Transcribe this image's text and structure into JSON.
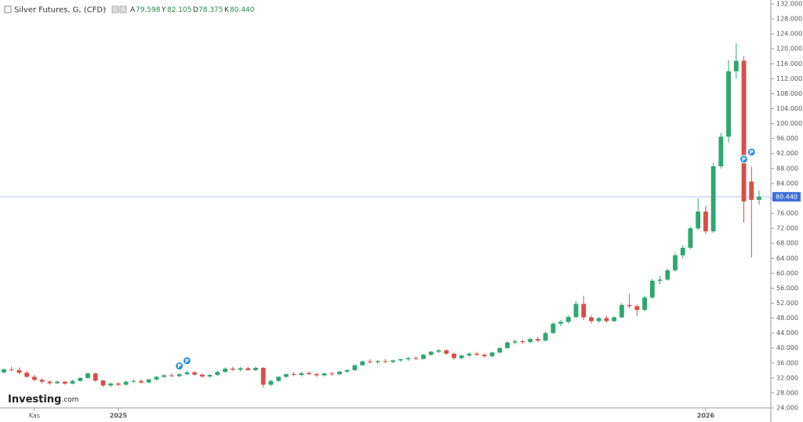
{
  "chart_data": {
    "type": "candlestick",
    "title": "Silver Futures, G, (CFD)",
    "ohlc_legend": [
      {
        "key": "A",
        "text": "79.598"
      },
      {
        "key": "Y",
        "text": "82.105"
      },
      {
        "key": "D",
        "text": "78.375"
      },
      {
        "key": "K",
        "text": "80.440"
      }
    ],
    "watermark": [
      "Investing",
      ".com"
    ],
    "up_color": "#2da771",
    "down_color": "#d64f47",
    "last_price": {
      "value": 80.44,
      "label": "80.440"
    },
    "categories": [
      null,
      null,
      null,
      null,
      "Kas",
      null,
      null,
      null,
      null,
      null,
      null,
      null,
      null,
      null,
      null,
      "2025",
      null,
      null,
      null,
      null,
      null,
      null,
      null,
      null,
      null,
      null,
      null,
      null,
      null,
      null,
      null,
      null,
      null,
      null,
      null,
      null,
      null,
      null,
      null,
      null,
      null,
      null,
      null,
      null,
      null,
      null,
      null,
      null,
      null,
      null,
      null,
      null,
      null,
      null,
      null,
      null,
      null,
      null,
      null,
      null,
      null,
      null,
      null,
      null,
      null,
      null,
      null,
      null,
      null,
      null,
      null,
      null,
      null,
      null,
      null,
      null,
      null,
      null,
      null,
      null,
      null,
      null,
      null,
      null,
      null,
      null,
      null,
      null,
      null,
      null,
      null,
      null,
      "2026",
      null,
      null,
      null,
      null,
      null,
      null,
      null
    ],
    "ohlc": [
      [
        33.5,
        34.6,
        33.2,
        34.3
      ],
      [
        34.3,
        35,
        33.8,
        34.1
      ],
      [
        34.1,
        34.8,
        33,
        33.4
      ],
      [
        33.4,
        33.8,
        32,
        32.3
      ],
      [
        32.3,
        32.8,
        31.2,
        31.5
      ],
      [
        31.5,
        31.9,
        30.5,
        31
      ],
      [
        31,
        31.4,
        30.2,
        30.6
      ],
      [
        30.6,
        31.3,
        30.3,
        31
      ],
      [
        31,
        31.2,
        30.2,
        30.5
      ],
      [
        30.5,
        31.5,
        30.3,
        31.2
      ],
      [
        31.2,
        32.2,
        31,
        32
      ],
      [
        32,
        33.5,
        31.8,
        33.2
      ],
      [
        33.2,
        33.4,
        31,
        31.3
      ],
      [
        31.3,
        31.5,
        29.6,
        30
      ],
      [
        30,
        30.8,
        29.5,
        30.5
      ],
      [
        30.5,
        30.9,
        29.8,
        30.2
      ],
      [
        30.2,
        31.3,
        30,
        31
      ],
      [
        31,
        31.6,
        30.6,
        31.2
      ],
      [
        31.2,
        31.5,
        30.5,
        30.8
      ],
      [
        30.8,
        31.8,
        30.6,
        31.6
      ],
      [
        31.6,
        32.5,
        31.3,
        32.3
      ],
      [
        32.3,
        33,
        32,
        32.7
      ],
      [
        32.7,
        33.2,
        32.2,
        32.5
      ],
      [
        32.5,
        33.3,
        32.2,
        33
      ],
      [
        33,
        34,
        32.8,
        33.5
      ],
      [
        33.5,
        33.8,
        32.6,
        32.9
      ],
      [
        32.9,
        33.2,
        32,
        32.4
      ],
      [
        32.4,
        33,
        32,
        32.8
      ],
      [
        32.8,
        33.8,
        32.5,
        33.6
      ],
      [
        33.6,
        34.8,
        33.4,
        34.5
      ],
      [
        34.5,
        35,
        33.9,
        34.2
      ],
      [
        34.2,
        34.9,
        33.8,
        34.6
      ],
      [
        34.6,
        35,
        33.9,
        34.1
      ],
      [
        34.1,
        35,
        33.8,
        34.7
      ],
      [
        34.7,
        34.9,
        29.5,
        30.2
      ],
      [
        30.2,
        31.5,
        29.8,
        31.2
      ],
      [
        31.2,
        32.5,
        31,
        32.3
      ],
      [
        32.3,
        33.2,
        32,
        33
      ],
      [
        33,
        33.6,
        32.5,
        32.8
      ],
      [
        32.8,
        33.5,
        32.4,
        33.3
      ],
      [
        33.3,
        33.8,
        32.8,
        33
      ],
      [
        33,
        33.5,
        32.3,
        32.7
      ],
      [
        32.7,
        33.4,
        32.4,
        33.2
      ],
      [
        33.2,
        33.6,
        32.6,
        33
      ],
      [
        33,
        33.9,
        32.8,
        33.7
      ],
      [
        33.7,
        34.3,
        33.3,
        34.1
      ],
      [
        34.1,
        35.6,
        33.9,
        35.4
      ],
      [
        35.4,
        36.6,
        35.2,
        36.4
      ],
      [
        36.4,
        37,
        35.9,
        36.2
      ],
      [
        36.2,
        36.8,
        35.8,
        36.5
      ],
      [
        36.5,
        37,
        36,
        36.3
      ],
      [
        36.3,
        36.9,
        35.9,
        36.7
      ],
      [
        36.7,
        37.2,
        36.3,
        37
      ],
      [
        37,
        37.6,
        36.6,
        37.3
      ],
      [
        37.3,
        37.8,
        36.8,
        37.1
      ],
      [
        37.1,
        38.5,
        36.9,
        38.2
      ],
      [
        38.2,
        39.2,
        37.9,
        39
      ],
      [
        39,
        39.8,
        38.6,
        39.4
      ],
      [
        39.4,
        39.7,
        38.2,
        38.5
      ],
      [
        38.5,
        38.8,
        36.9,
        37.3
      ],
      [
        37.3,
        38.2,
        37,
        38
      ],
      [
        38,
        38.8,
        37.6,
        38.5
      ],
      [
        38.5,
        39,
        37.9,
        38.2
      ],
      [
        38.2,
        38.6,
        37.4,
        37.8
      ],
      [
        37.8,
        39,
        37.5,
        38.8
      ],
      [
        38.8,
        40.2,
        38.6,
        40
      ],
      [
        40,
        41.8,
        39.8,
        41.5
      ],
      [
        41.5,
        42.3,
        41,
        41.8
      ],
      [
        41.8,
        42.2,
        41.2,
        41.6
      ],
      [
        41.6,
        42.8,
        41.3,
        42.4
      ],
      [
        42.4,
        43,
        41.6,
        42
      ],
      [
        42,
        44.4,
        41.8,
        44
      ],
      [
        44,
        46.9,
        43.8,
        46.5
      ],
      [
        46.5,
        47.5,
        45.8,
        47
      ],
      [
        47,
        48.8,
        46.5,
        48.3
      ],
      [
        48.3,
        52.6,
        48,
        51.8
      ],
      [
        51.8,
        54,
        47.5,
        48.2
      ],
      [
        48.2,
        48.8,
        46.6,
        47.2
      ],
      [
        47.2,
        48.3,
        46.8,
        48
      ],
      [
        48,
        48.6,
        46.8,
        47.2
      ],
      [
        47.2,
        48.5,
        46.9,
        48.2
      ],
      [
        48.2,
        52,
        48,
        51.5
      ],
      [
        51.5,
        54.5,
        50.6,
        51.2
      ],
      [
        51.2,
        51.6,
        48.6,
        50.2
      ],
      [
        50.2,
        54,
        49.8,
        53.5
      ],
      [
        53.5,
        58.5,
        53.2,
        58
      ],
      [
        58,
        59.3,
        57,
        58.3
      ],
      [
        58.3,
        61.2,
        58,
        60.8
      ],
      [
        60.8,
        65.5,
        60.5,
        64.8
      ],
      [
        64.8,
        67.5,
        64,
        66.8
      ],
      [
        66.8,
        72.5,
        66.5,
        72
      ],
      [
        72,
        80,
        71.5,
        76.5
      ],
      [
        76.5,
        78,
        70.5,
        71.2
      ],
      [
        71.2,
        89.5,
        70.8,
        88.6
      ],
      [
        88.6,
        97.5,
        88,
        96.5
      ],
      [
        96.5,
        117,
        95,
        114
      ],
      [
        114,
        121.5,
        112,
        116.8
      ],
      [
        116.8,
        118,
        73.5,
        79.2
      ],
      [
        84.5,
        88.5,
        64.2,
        79.6
      ],
      [
        79.598,
        82.105,
        78.375,
        80.44
      ]
    ],
    "markers": [
      {
        "label": "P",
        "index": 23,
        "value": 35.2
      },
      {
        "label": "P",
        "index": 24,
        "value": 36.6
      },
      {
        "label": "P",
        "index": 97,
        "value": 90.5
      },
      {
        "label": "P",
        "index": 98,
        "value": 92.4
      }
    ],
    "ylim": [
      24,
      132
    ],
    "yticks": [
      {
        "value": 24,
        "label": "24.000"
      },
      {
        "value": 28,
        "label": "28.000"
      },
      {
        "value": 32,
        "label": "32.000"
      },
      {
        "value": 36,
        "label": "36.000"
      },
      {
        "value": 40,
        "label": "40.000"
      },
      {
        "value": 44,
        "label": "44.000"
      },
      {
        "value": 48,
        "label": "48.000"
      },
      {
        "value": 52,
        "label": "52.000"
      },
      {
        "value": 56,
        "label": "56.000"
      },
      {
        "value": 60,
        "label": "60.000"
      },
      {
        "value": 64,
        "label": "64.000"
      },
      {
        "value": 68,
        "label": "68.000"
      },
      {
        "value": 72,
        "label": "72.000"
      },
      {
        "value": 76,
        "label": "76.000"
      },
      {
        "value": 80,
        "label": "80.000"
      },
      {
        "value": 84,
        "label": "84.000"
      },
      {
        "value": 88,
        "label": "88.000"
      },
      {
        "value": 92,
        "label": "92.000"
      },
      {
        "value": 96,
        "label": "96.000"
      },
      {
        "value": 100,
        "label": "100.000"
      },
      {
        "value": 104,
        "label": "104.000"
      },
      {
        "value": 108,
        "label": "108.000"
      },
      {
        "value": 112,
        "label": "112.000"
      },
      {
        "value": 116,
        "label": "116.000"
      },
      {
        "value": 120,
        "label": "120.000"
      },
      {
        "value": 124,
        "label": "124.000"
      },
      {
        "value": 128,
        "label": "128.000"
      },
      {
        "value": 132,
        "label": "132.000"
      }
    ]
  }
}
